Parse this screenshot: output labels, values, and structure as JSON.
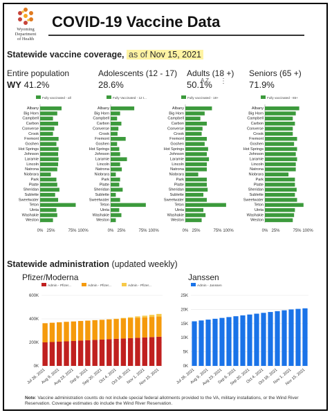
{
  "logo": {
    "lines": [
      "Wyoming",
      "Department",
      "of Health"
    ]
  },
  "title": "COVID-19 Vaccine Data",
  "coverage": {
    "heading": "Statewide vaccine coverage,",
    "as_of": "as of",
    "date": "Nov 15, 2021"
  },
  "groups": [
    {
      "label": "Entire population",
      "prefix": "WY",
      "value": "41.2%",
      "legend": "Fully vaccinated - all",
      "color": "#3c9a3c"
    },
    {
      "label": "Adolescents (12 - 17)",
      "prefix": "",
      "value": "28.6%",
      "legend": "Fully Vaccinated - 12 t...",
      "color": "#3c9a3c"
    },
    {
      "label": "Adults (18 +)",
      "prefix": "",
      "value": "50.1%",
      "legend": "Fully vaccinated - 18+",
      "color": "#3c9a3c"
    },
    {
      "label": "Seniors (65 +)",
      "prefix": "",
      "value": "71.9%",
      "legend": "Fully vaccinated - 65+",
      "color": "#3c9a3c"
    }
  ],
  "toolbar": {
    "sort_icon": "A Z",
    "more_icon": "⋮"
  },
  "chart_data": [
    {
      "type": "bar",
      "orientation": "horizontal",
      "title": "Entire population",
      "categories": [
        "Albany",
        "Big Horn",
        "Campbell",
        "Carbon",
        "Converse",
        "Crook",
        "Fremont",
        "Goshen",
        "Hot Springs",
        "Johnson",
        "Laramie",
        "Lincoln",
        "Natrona",
        "Niobrara",
        "Park",
        "Platte",
        "Sheridan",
        "Sublette",
        "Sweetwater",
        "Teton",
        "Uinta",
        "Washakie",
        "Weston"
      ],
      "series": [
        {
          "name": "Fully vaccinated - all",
          "values": [
            50,
            40,
            30,
            42,
            33,
            30,
            43,
            38,
            43,
            42,
            43,
            42,
            40,
            25,
            38,
            40,
            45,
            35,
            42,
            83,
            38,
            40,
            30
          ]
        }
      ],
      "xticks": [
        "0%",
        "25%",
        "75%",
        "100%"
      ],
      "xlim": [
        0,
        100
      ]
    },
    {
      "type": "bar",
      "orientation": "horizontal",
      "title": "Adolescents (12 - 17)",
      "categories": [
        "Albany",
        "Big Horn",
        "Campbell",
        "Carbon",
        "Converse",
        "Crook",
        "Fremont",
        "Goshen",
        "Hot Springs",
        "Johnson",
        "Laramie",
        "Lincoln",
        "Natrona",
        "Niobrara",
        "Park",
        "Platte",
        "Sheridan",
        "Sublette",
        "Sweetwater",
        "Teton",
        "Uinta",
        "Washakie",
        "Weston"
      ],
      "series": [
        {
          "name": "Fully Vaccinated - 12 t...",
          "values": [
            55,
            22,
            15,
            25,
            18,
            16,
            35,
            15,
            20,
            22,
            38,
            22,
            26,
            12,
            22,
            20,
            28,
            12,
            22,
            82,
            20,
            25,
            12
          ]
        }
      ],
      "xticks": [
        "0%",
        "25%",
        "75%",
        "100%"
      ],
      "xlim": [
        0,
        100
      ]
    },
    {
      "type": "bar",
      "orientation": "horizontal",
      "title": "Adults (18 +)",
      "categories": [
        "Albany",
        "Big Horn",
        "Campbell",
        "Carbon",
        "Converse",
        "Crook",
        "Fremont",
        "Goshen",
        "Hot Springs",
        "Johnson",
        "Laramie",
        "Lincoln",
        "Natrona",
        "Niobrara",
        "Park",
        "Platte",
        "Sheridan",
        "Sublette",
        "Sweetwater",
        "Teton",
        "Uinta",
        "Washakie",
        "Weston"
      ],
      "series": [
        {
          "name": "Fully vaccinated - 18+",
          "values": [
            62,
            45,
            35,
            50,
            40,
            38,
            50,
            45,
            53,
            50,
            55,
            50,
            50,
            30,
            50,
            50,
            52,
            42,
            50,
            95,
            42,
            47,
            38
          ]
        }
      ],
      "xticks": [
        "0%",
        "25%",
        "75%",
        "100%"
      ],
      "xlim": [
        0,
        100
      ]
    },
    {
      "type": "bar",
      "orientation": "horizontal",
      "title": "Seniors (65 +)",
      "categories": [
        "Albany",
        "Big Horn",
        "Campbell",
        "Carbon",
        "Converse",
        "Crook",
        "Fremont",
        "Goshen",
        "Hot Springs",
        "Johnson",
        "Laramie",
        "Lincoln",
        "Natrona",
        "Niobrara",
        "Park",
        "Platte",
        "Sheridan",
        "Sublette",
        "Sweetwater",
        "Teton",
        "Uinta",
        "Washakie",
        "Weston"
      ],
      "series": [
        {
          "name": "Fully vaccinated - 65+",
          "values": [
            80,
            72,
            65,
            70,
            65,
            65,
            75,
            68,
            75,
            72,
            75,
            72,
            72,
            55,
            70,
            70,
            74,
            70,
            75,
            90,
            70,
            68,
            65
          ]
        }
      ],
      "xticks": [
        "0%",
        "25%",
        "75%",
        "100%"
      ],
      "xlim": [
        0,
        100
      ]
    },
    {
      "type": "bar",
      "stacked": true,
      "title": "Pfizer/Moderna",
      "categories": [
        "Jul 26, 2021",
        "Aug 2, 2021",
        "Aug 9, 2021",
        "Aug 16, 2021",
        "Aug 23, 2021",
        "Aug 30, 2021",
        "Sep 6, 2021",
        "Sep 13, 2021",
        "Sep 20, 2021",
        "Sep 27, 2021",
        "Oct 4, 2021",
        "Oct 11, 2021",
        "Oct 18, 2021",
        "Oct 25, 2021",
        "Nov 1, 2021",
        "Nov 8, 2021",
        "Nov 15, 2021"
      ],
      "xtick_labels": [
        "Jul 26, 2021",
        "Aug 9, 2021",
        "Aug 23, 2021",
        "Sep 6, 2021",
        "Sep 20, 2021",
        "Oct 4, 2021",
        "Oct 18, 2021",
        "Nov 1, 2021",
        "Nov 15, 2021"
      ],
      "series": [
        {
          "name": "Admin - Pfizer...",
          "color": "#c0201f",
          "values": [
            200000,
            203000,
            206000,
            209000,
            212000,
            215000,
            218000,
            221000,
            224000,
            227000,
            230000,
            233000,
            236000,
            239000,
            242000,
            245000,
            248000
          ]
        },
        {
          "name": "Admin - Pfizer...",
          "color": "#f59a0c",
          "values": [
            163000,
            164000,
            165000,
            166000,
            166000,
            167000,
            167000,
            168000,
            168000,
            169000,
            169000,
            170000,
            170000,
            171000,
            171000,
            172000,
            172000
          ]
        },
        {
          "name": "Admin - Pfizer...",
          "color": "#f7c948",
          "values": [
            0,
            0,
            0,
            0,
            0,
            0,
            0,
            0,
            0,
            0,
            2000,
            5000,
            8000,
            11000,
            14000,
            17000,
            22000
          ]
        }
      ],
      "yticks": [
        "0K",
        "200K",
        "400K",
        "600K"
      ],
      "ylim": [
        0,
        600000
      ]
    },
    {
      "type": "bar",
      "title": "Janssen",
      "categories": [
        "Jul 26, 2021",
        "Aug 2, 2021",
        "Aug 9, 2021",
        "Aug 16, 2021",
        "Aug 23, 2021",
        "Aug 30, 2021",
        "Sep 6, 2021",
        "Sep 13, 2021",
        "Sep 20, 2021",
        "Sep 27, 2021",
        "Oct 4, 2021",
        "Oct 11, 2021",
        "Oct 18, 2021",
        "Oct 25, 2021",
        "Nov 1, 2021",
        "Nov 8, 2021",
        "Nov 15, 2021"
      ],
      "xtick_labels": [
        "Jul 26, 2021",
        "Aug 9, 2021",
        "Aug 23, 2021",
        "Sep 6, 2021",
        "Sep 20, 2021",
        "Oct 4, 2021",
        "Oct 18, 2021",
        "Nov 1, 2021",
        "Nov 15, 2021"
      ],
      "series": [
        {
          "name": "Admin - Janssen",
          "color": "#1a73e8",
          "values": [
            15800,
            16100,
            16400,
            16700,
            17000,
            17300,
            17600,
            17900,
            18200,
            18500,
            18800,
            19100,
            19400,
            19700,
            20000,
            20200,
            20400
          ]
        }
      ],
      "yticks": [
        "0K",
        "5K",
        "10K",
        "15K",
        "20K",
        "25K"
      ],
      "ylim": [
        0,
        25000
      ]
    }
  ],
  "administration": {
    "heading": "Statewide administration",
    "sub": "(updated weekly)"
  },
  "note": {
    "label": "Note",
    "text": ": Vaccine administration counts do not include special federal allotments provided to the VA, military installations, or the Wind River Reservation. Coverage estimates do include the Wind River Reservation."
  }
}
